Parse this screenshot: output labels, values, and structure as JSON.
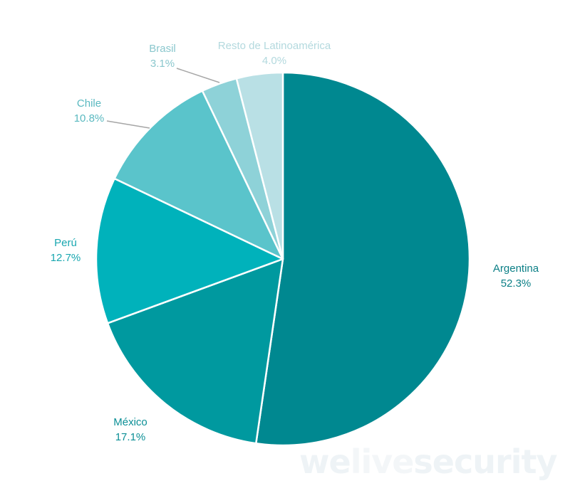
{
  "chart_data": {
    "type": "pie",
    "title": "",
    "slices": [
      {
        "label": "Argentina",
        "value": 52.3,
        "value_label": "52.3%",
        "color": "#008890",
        "label_color": "#0b7f86"
      },
      {
        "label": "México",
        "value": 17.1,
        "value_label": "17.1%",
        "color": "#00999f",
        "label_color": "#0b8f96"
      },
      {
        "label": "Perú",
        "value": 12.7,
        "value_label": "12.7%",
        "color": "#00b2bb",
        "label_color": "#19a7b0"
      },
      {
        "label": "Chile",
        "value": 10.8,
        "value_label": "10.8%",
        "color": "#5ac4cb",
        "label_color": "#5ab9c0"
      },
      {
        "label": "Brasil",
        "value": 3.1,
        "value_label": "3.1%",
        "color": "#8ed2d8",
        "label_color": "#8ac7cd"
      },
      {
        "label": "Resto de Latinoamérica",
        "value": 4.0,
        "value_label": "4.0%",
        "color": "#b9e0e5",
        "label_color": "#b3d9de"
      }
    ],
    "start": "12 o'clock",
    "direction": "clockwise"
  },
  "watermark": {
    "part1": "we",
    "part2": "live",
    "part3": "security"
  }
}
